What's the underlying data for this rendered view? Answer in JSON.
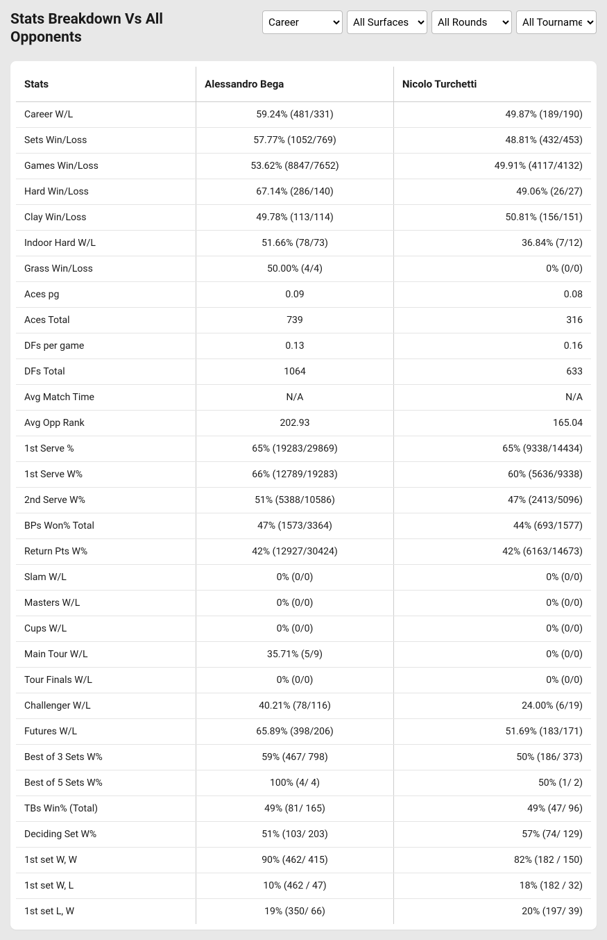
{
  "header": {
    "title": "Stats Breakdown Vs All Opponents"
  },
  "filters": {
    "period": {
      "selected": "Career"
    },
    "surface": {
      "selected": "All Surfaces"
    },
    "round": {
      "selected": "All Rounds"
    },
    "tournament": {
      "selected": "All Tournaments"
    }
  },
  "table": {
    "columns": [
      "Stats",
      "Alessandro Bega",
      "Nicolo Turchetti"
    ],
    "rows": [
      [
        "Career W/L",
        "59.24% (481/331)",
        "49.87% (189/190)"
      ],
      [
        "Sets Win/Loss",
        "57.77% (1052/769)",
        "48.81% (432/453)"
      ],
      [
        "Games Win/Loss",
        "53.62% (8847/7652)",
        "49.91% (4117/4132)"
      ],
      [
        "Hard Win/Loss",
        "67.14% (286/140)",
        "49.06% (26/27)"
      ],
      [
        "Clay Win/Loss",
        "49.78% (113/114)",
        "50.81% (156/151)"
      ],
      [
        "Indoor Hard W/L",
        "51.66% (78/73)",
        "36.84% (7/12)"
      ],
      [
        "Grass Win/Loss",
        "50.00% (4/4)",
        "0% (0/0)"
      ],
      [
        "Aces pg",
        "0.09",
        "0.08"
      ],
      [
        "Aces Total",
        "739",
        "316"
      ],
      [
        "DFs per game",
        "0.13",
        "0.16"
      ],
      [
        "DFs Total",
        "1064",
        "633"
      ],
      [
        "Avg Match Time",
        "N/A",
        "N/A"
      ],
      [
        "Avg Opp Rank",
        "202.93",
        "165.04"
      ],
      [
        "1st Serve %",
        "65% (19283/29869)",
        "65% (9338/14434)"
      ],
      [
        "1st Serve W%",
        "66% (12789/19283)",
        "60% (5636/9338)"
      ],
      [
        "2nd Serve W%",
        "51% (5388/10586)",
        "47% (2413/5096)"
      ],
      [
        "BPs Won% Total",
        "47% (1573/3364)",
        "44% (693/1577)"
      ],
      [
        "Return Pts W%",
        "42% (12927/30424)",
        "42% (6163/14673)"
      ],
      [
        "Slam W/L",
        "0% (0/0)",
        "0% (0/0)"
      ],
      [
        "Masters W/L",
        "0% (0/0)",
        "0% (0/0)"
      ],
      [
        "Cups W/L",
        "0% (0/0)",
        "0% (0/0)"
      ],
      [
        "Main Tour W/L",
        "35.71% (5/9)",
        "0% (0/0)"
      ],
      [
        "Tour Finals W/L",
        "0% (0/0)",
        "0% (0/0)"
      ],
      [
        "Challenger W/L",
        "40.21% (78/116)",
        "24.00% (6/19)"
      ],
      [
        "Futures W/L",
        "65.89% (398/206)",
        "51.69% (183/171)"
      ],
      [
        "Best of 3 Sets W%",
        "59% (467/ 798)",
        "50% (186/ 373)"
      ],
      [
        "Best of 5 Sets W%",
        "100% (4/ 4)",
        "50% (1/ 2)"
      ],
      [
        "TBs Win% (Total)",
        "49% (81/ 165)",
        "49% (47/ 96)"
      ],
      [
        "Deciding Set W%",
        "51% (103/ 203)",
        "57% (74/ 129)"
      ],
      [
        "1st set W, W",
        "90% (462/ 415)",
        "82% (182 / 150)"
      ],
      [
        "1st set W, L",
        "10% (462 / 47)",
        "18% (182 / 32)"
      ],
      [
        "1st set L, W",
        "19% (350/ 66)",
        "20% (197/ 39)"
      ]
    ]
  }
}
